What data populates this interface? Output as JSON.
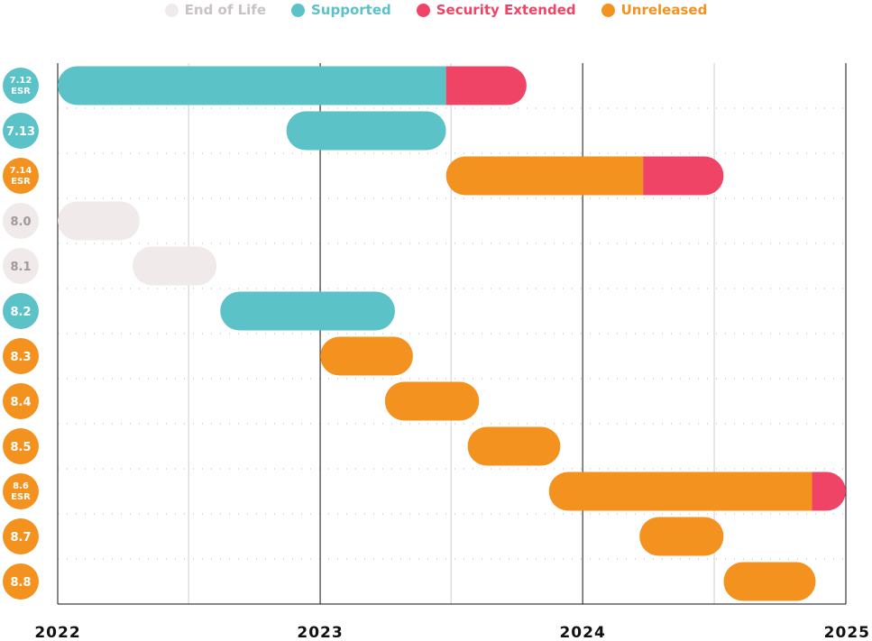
{
  "legend": [
    {
      "label": "End of Life",
      "status": "eol",
      "color": "#f1eaea",
      "text_color": "#c9c3c3"
    },
    {
      "label": "Supported",
      "status": "supported",
      "color": "#5bc2c8",
      "text_color": "#5bc2c8"
    },
    {
      "label": "Security Extended",
      "status": "security",
      "color": "#f04466",
      "text_color": "#f04466"
    },
    {
      "label": "Unreleased",
      "status": "unreleased",
      "color": "#f3921e",
      "text_color": "#f3921e"
    }
  ],
  "chart_data": {
    "type": "bar",
    "orientation": "horizontal-timeline",
    "xlim": [
      "2022-01-01",
      "2025-01-01"
    ],
    "x_ticks": [
      "2022",
      "2023",
      "2024",
      "2025"
    ],
    "grid": true,
    "legend_position": "top-center",
    "rows": [
      {
        "version": "7.12",
        "tag": "ESR",
        "badge": "supported",
        "segments": [
          {
            "status": "supported",
            "start": "2022-01-01",
            "end": "2023-06-25"
          },
          {
            "status": "security",
            "start": "2023-06-25",
            "end": "2023-10-15"
          }
        ]
      },
      {
        "version": "7.13",
        "tag": "",
        "badge": "supported",
        "segments": [
          {
            "status": "supported",
            "start": "2022-11-15",
            "end": "2023-06-25"
          }
        ]
      },
      {
        "version": "7.14",
        "tag": "ESR",
        "badge": "unreleased",
        "segments": [
          {
            "status": "unreleased",
            "start": "2023-06-25",
            "end": "2024-03-25"
          },
          {
            "status": "security",
            "start": "2024-03-25",
            "end": "2024-07-15"
          }
        ]
      },
      {
        "version": "8.0",
        "tag": "",
        "badge": "eol",
        "segments": [
          {
            "status": "eol",
            "start": "2022-01-01",
            "end": "2022-04-25"
          }
        ]
      },
      {
        "version": "8.1",
        "tag": "",
        "badge": "eol",
        "segments": [
          {
            "status": "eol",
            "start": "2022-04-15",
            "end": "2022-08-10"
          }
        ]
      },
      {
        "version": "8.2",
        "tag": "",
        "badge": "supported",
        "segments": [
          {
            "status": "supported",
            "start": "2022-08-15",
            "end": "2023-04-15"
          }
        ]
      },
      {
        "version": "8.3",
        "tag": "",
        "badge": "unreleased",
        "segments": [
          {
            "status": "unreleased",
            "start": "2023-01-01",
            "end": "2023-05-10"
          }
        ]
      },
      {
        "version": "8.4",
        "tag": "",
        "badge": "unreleased",
        "segments": [
          {
            "status": "unreleased",
            "start": "2023-04-01",
            "end": "2023-08-10"
          }
        ]
      },
      {
        "version": "8.5",
        "tag": "",
        "badge": "unreleased",
        "segments": [
          {
            "status": "unreleased",
            "start": "2023-07-25",
            "end": "2023-12-01"
          }
        ]
      },
      {
        "version": "8.6",
        "tag": "ESR",
        "badge": "unreleased",
        "segments": [
          {
            "status": "unreleased",
            "start": "2023-11-15",
            "end": "2024-11-15"
          },
          {
            "status": "security",
            "start": "2024-11-15",
            "end": "2025-01-01"
          }
        ]
      },
      {
        "version": "8.7",
        "tag": "",
        "badge": "unreleased",
        "segments": [
          {
            "status": "unreleased",
            "start": "2024-03-20",
            "end": "2024-07-15"
          }
        ]
      },
      {
        "version": "8.8",
        "tag": "",
        "badge": "unreleased",
        "segments": [
          {
            "status": "unreleased",
            "start": "2024-07-15",
            "end": "2024-11-20"
          }
        ]
      }
    ]
  }
}
